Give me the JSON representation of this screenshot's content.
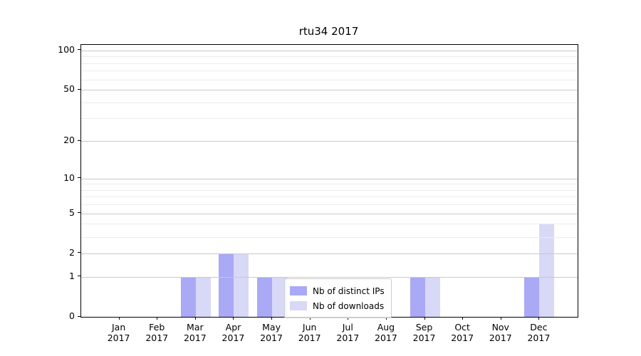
{
  "title": "rtu34 2017",
  "chart_data": {
    "type": "bar",
    "months": [
      "Jan",
      "Feb",
      "Mar",
      "Apr",
      "May",
      "Jun",
      "Jul",
      "Aug",
      "Sep",
      "Oct",
      "Nov",
      "Dec"
    ],
    "year": "2017",
    "series": [
      {
        "name": "Nb of distinct IPs",
        "color": "#a9a9f5",
        "values": [
          0,
          0,
          1,
          2,
          1,
          0,
          0,
          0,
          1,
          0,
          0,
          1
        ]
      },
      {
        "name": "Nb of downloads",
        "color": "#d8d8f7",
        "values": [
          0,
          0,
          1,
          2,
          1,
          0,
          0,
          0,
          1,
          0,
          0,
          4
        ]
      }
    ],
    "yscale": "log1p",
    "ymax": 110,
    "y_major_ticks": [
      0,
      1,
      2,
      5,
      10,
      20,
      50,
      100
    ],
    "y_minor_ticks": [
      3,
      4,
      6,
      7,
      8,
      9,
      30,
      40,
      60,
      70,
      80,
      90
    ],
    "grid": "horizontal",
    "legend_position": "lower-center-inside"
  },
  "colors": {
    "grid_major": "#c9c9c9",
    "grid_minor": "#ececec",
    "axis": "#000000",
    "legend_border": "#cccccc"
  }
}
